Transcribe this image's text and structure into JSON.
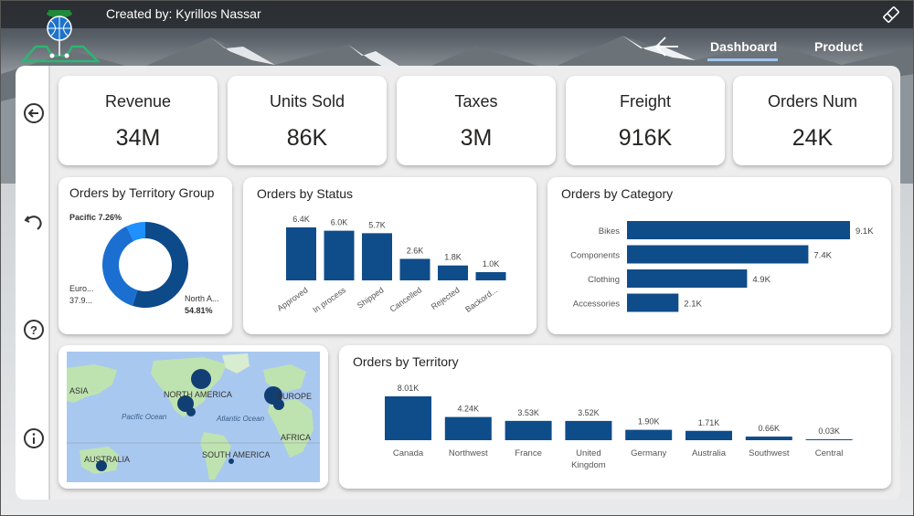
{
  "header": {
    "created_by": "Created by: Kyrillos Nassar",
    "tabs": [
      "Dashboard",
      "Product"
    ],
    "active_tab": "Dashboard",
    "icons": [
      "eraser-icon",
      "back-arrow-icon",
      "logo"
    ]
  },
  "sidebar": {
    "icons": [
      "circle-back-arrow-icon",
      "undo-icon",
      "help-icon",
      "info-icon"
    ]
  },
  "kpis": [
    {
      "label": "Revenue",
      "value": "34M"
    },
    {
      "label": "Units Sold",
      "value": "86K"
    },
    {
      "label": "Taxes",
      "value": "3M"
    },
    {
      "label": "Freight",
      "value": "916K"
    },
    {
      "label": "Orders Num",
      "value": "24K"
    }
  ],
  "map": {
    "labels": [
      "ASIA",
      "NORTH AMERICA",
      "EUROPE",
      "Pacific Ocean",
      "Atlantic Ocean",
      "AFRICA",
      "AUSTRALIA",
      "SOUTH AMERICA"
    ],
    "water_color": "#a9c8ef",
    "land_color": "#bfe3b0",
    "bubble_color": "#113f73"
  },
  "colors": {
    "bar": "#0f4c8a",
    "donut_dark": "#0d4a8a",
    "donut_mid": "#1a6fd1",
    "donut_light": "#1e90ff"
  },
  "chart_data": [
    {
      "type": "pie",
      "title": "Orders by Territory Group",
      "labels": [
        "North A...",
        "Euro...",
        "Pacific"
      ],
      "label_text": [
        "North A...",
        "Euro...",
        "Pacific 7.26%"
      ],
      "percent_text": [
        "54.81%",
        "37.9...",
        ""
      ],
      "values": [
        54.81,
        37.93,
        7.26
      ],
      "donut": true
    },
    {
      "type": "bar",
      "title": "Orders by Status",
      "categories": [
        "Approved",
        "In process",
        "Shipped",
        "Cancelled",
        "Rejected",
        "Backord..."
      ],
      "values": [
        6.4,
        6.0,
        5.7,
        2.6,
        1.8,
        1.0
      ],
      "data_labels": [
        "6.4K",
        "6.0K",
        "5.7K",
        "2.6K",
        "1.8K",
        "1.0K"
      ],
      "unit": "K"
    },
    {
      "type": "bar",
      "orientation": "horizontal",
      "title": "Orders by Category",
      "categories": [
        "Bikes",
        "Components",
        "Clothing",
        "Accessories"
      ],
      "values": [
        9.1,
        7.4,
        4.9,
        2.1
      ],
      "data_labels": [
        "9.1K",
        "7.4K",
        "4.9K",
        "2.1K"
      ],
      "unit": "K"
    },
    {
      "type": "bar",
      "title": "Orders by Territory",
      "categories": [
        "Canada",
        "Northwest",
        "France",
        "United Kingdom",
        "Germany",
        "Australia",
        "Southwest",
        "Central"
      ],
      "category_lines": [
        [
          "Canada"
        ],
        [
          "Northwest"
        ],
        [
          "France"
        ],
        [
          "United",
          "Kingdom"
        ],
        [
          "Germany"
        ],
        [
          "Australia"
        ],
        [
          "Southwest"
        ],
        [
          "Central"
        ]
      ],
      "values": [
        8.01,
        4.24,
        3.53,
        3.52,
        1.9,
        1.71,
        0.66,
        0.03
      ],
      "data_labels": [
        "8.01K",
        "4.24K",
        "3.53K",
        "3.52K",
        "1.90K",
        "1.71K",
        "0.66K",
        "0.03K"
      ],
      "unit": "K"
    }
  ]
}
